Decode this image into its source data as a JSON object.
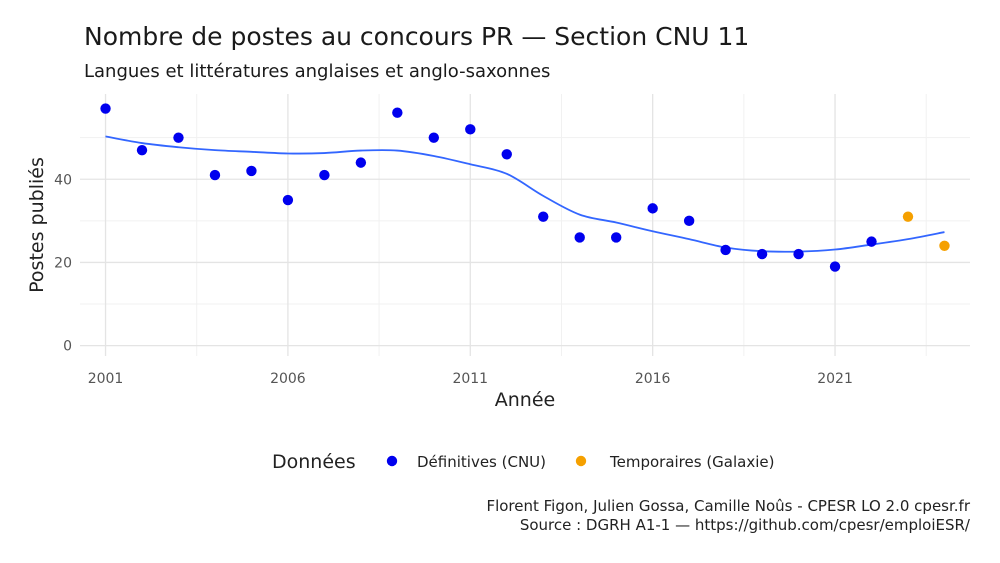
{
  "title": "Nombre de postes au concours PR  —  Section CNU 11",
  "subtitle": "Langues et littératures anglaises et anglo-saxonnes",
  "caption": {
    "line1": "Florent Figon, Julien Gossa, Camille Noûs - CPESR LO 2.0 cpesr.fr",
    "line2": "Source : DGRH A1-1 — https://github.com/cpesr/emploiESR/"
  },
  "colors": {
    "definitive": "#0000ee",
    "temporary": "#f5a000",
    "smooth": "#3366ff",
    "grid_major": "#e4e4e4",
    "grid_minor": "#f1f1f1"
  },
  "chart_data": {
    "type": "scatter",
    "xlabel": "Année",
    "ylabel": "Postes publiés",
    "xlim": [
      2000.3,
      2024.7
    ],
    "ylim": [
      -2.5,
      60.5
    ],
    "x_ticks": [
      2001,
      2006,
      2011,
      2016,
      2021
    ],
    "y_ticks": [
      0,
      20,
      40
    ],
    "grid": true,
    "legend": {
      "title": "Données",
      "position": "bottom",
      "entries": [
        "Définitives (CNU)",
        "Temporaires (Galaxie)"
      ]
    },
    "series": [
      {
        "name": "Définitives (CNU)",
        "points": [
          [
            2001,
            57
          ],
          [
            2002,
            47
          ],
          [
            2003,
            50
          ],
          [
            2004,
            41
          ],
          [
            2005,
            42
          ],
          [
            2006,
            35
          ],
          [
            2007,
            41
          ],
          [
            2008,
            44
          ],
          [
            2009,
            56
          ],
          [
            2010,
            50
          ],
          [
            2011,
            52
          ],
          [
            2012,
            46
          ],
          [
            2013,
            31
          ],
          [
            2014,
            26
          ],
          [
            2015,
            26
          ],
          [
            2016,
            33
          ],
          [
            2017,
            30
          ],
          [
            2018,
            23
          ],
          [
            2019,
            22
          ],
          [
            2020,
            22
          ],
          [
            2021,
            19
          ],
          [
            2022,
            25
          ]
        ]
      },
      {
        "name": "Temporaires (Galaxie)",
        "points": [
          [
            2023,
            31
          ],
          [
            2024,
            24
          ]
        ]
      }
    ],
    "smooth_line": [
      [
        2001,
        50.3
      ],
      [
        2002,
        48.7
      ],
      [
        2003,
        47.7
      ],
      [
        2004,
        47.0
      ],
      [
        2005,
        46.6
      ],
      [
        2006,
        46.2
      ],
      [
        2007,
        46.3
      ],
      [
        2008,
        46.9
      ],
      [
        2009,
        46.9
      ],
      [
        2010,
        45.6
      ],
      [
        2011,
        43.6
      ],
      [
        2012,
        41.3
      ],
      [
        2013,
        36.0
      ],
      [
        2014,
        31.5
      ],
      [
        2015,
        29.6
      ],
      [
        2016,
        27.5
      ],
      [
        2017,
        25.6
      ],
      [
        2018,
        23.6
      ],
      [
        2019,
        22.7
      ],
      [
        2020,
        22.6
      ],
      [
        2021,
        23.1
      ],
      [
        2022,
        24.3
      ],
      [
        2023,
        25.6
      ],
      [
        2024,
        27.3
      ]
    ]
  }
}
